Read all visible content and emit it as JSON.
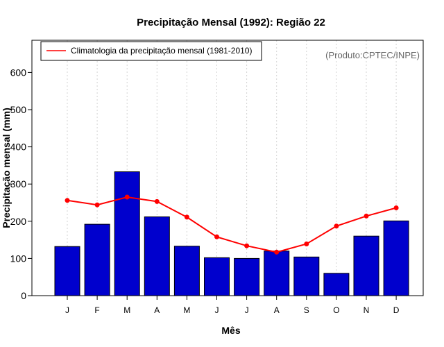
{
  "chart_data": {
    "type": "bar",
    "title": "Precipitação Mensal (1992): Região 22",
    "xlabel": "Mês",
    "ylabel": "Precipitação mensal (mm)",
    "ylim": [
      0,
      680
    ],
    "yticks": [
      0,
      100,
      200,
      300,
      400,
      500,
      600
    ],
    "grid": "vertical dotted",
    "categories": [
      "J",
      "F",
      "M",
      "A",
      "M",
      "J",
      "J",
      "A",
      "S",
      "O",
      "N",
      "D"
    ],
    "series": [
      {
        "name": "Precipitação mensal (1992)",
        "type": "bar",
        "values": [
          132,
          192,
          333,
          212,
          133,
          102,
          100,
          120,
          104,
          60,
          160,
          201
        ]
      },
      {
        "name": "Climatologia da precipitação mensal (1981-2010)",
        "type": "line",
        "values": [
          256,
          244,
          265,
          253,
          211,
          158,
          134,
          117,
          139,
          187,
          214,
          236
        ]
      }
    ],
    "legend": {
      "entry": "Climatologia da precipitação mensal (1981-2010)",
      "placement": "top-left"
    },
    "annotation": "(Produto:CPTEC/INPE)"
  },
  "colors": {
    "bar_fill": "#0000CD",
    "bar_stroke": "#000000",
    "line": "#FF0000",
    "grid": "#D3D3D3",
    "annotation": "#666666"
  }
}
